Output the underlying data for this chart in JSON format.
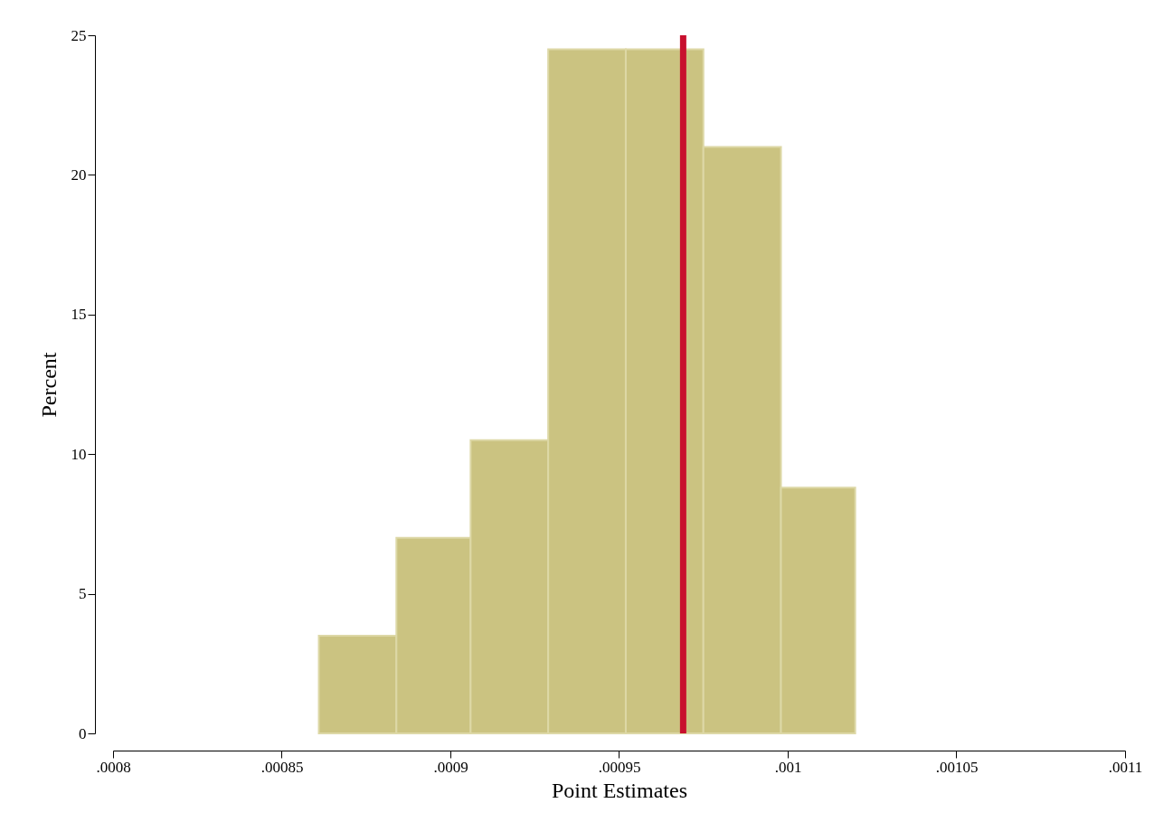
{
  "chart_data": {
    "type": "histogram",
    "xlabel": "Point Estimates",
    "ylabel": "Percent",
    "bins": [
      0.000861,
      0.000884,
      0.000906,
      0.000929,
      0.000952,
      0.000975,
      0.000998,
      0.00102
    ],
    "values": [
      3.5,
      7,
      10.5,
      24.5,
      24.5,
      21,
      8.8
    ],
    "color": "#cbc381",
    "xlim": [
      0.0008,
      0.0011
    ],
    "xticks": [
      {
        "value": 0.0008,
        "label": ".0008"
      },
      {
        "value": 0.00085,
        "label": ".00085"
      },
      {
        "value": 0.0009,
        "label": ".0009"
      },
      {
        "value": 0.00095,
        "label": ".00095"
      },
      {
        "value": 0.001,
        "label": ".001"
      },
      {
        "value": 0.00105,
        "label": ".00105"
      },
      {
        "value": 0.0011,
        "label": ".0011"
      }
    ],
    "ylim": [
      0,
      25
    ],
    "yticks": [
      0,
      5,
      10,
      15,
      20,
      25
    ],
    "ref_lines": [
      {
        "axis": "x",
        "value": 0.000969,
        "color": "#c8102e"
      }
    ],
    "grid": false
  }
}
